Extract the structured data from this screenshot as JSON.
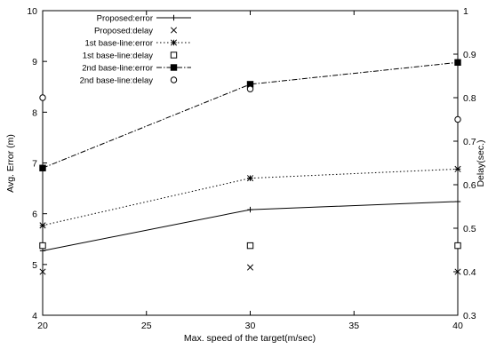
{
  "chart_data": {
    "type": "line",
    "title": "",
    "xlabel": "Max. speed of the target(m/sec)",
    "ylabel_left": "Avg. Error (m)",
    "ylabel_right": "Delay(sec.)",
    "x": [
      20,
      30,
      40
    ],
    "xlim": [
      20,
      40
    ],
    "ylim_left": [
      4,
      10
    ],
    "ylim_right": [
      0.3,
      1.0
    ],
    "x_ticks": [
      "20",
      "25",
      "30",
      "35",
      "40"
    ],
    "y_left_ticks": [
      "4",
      "5",
      "6",
      "7",
      "8",
      "9",
      "10"
    ],
    "y_right_ticks": [
      "0.3",
      "0.4",
      "0.5",
      "0.6",
      "0.7",
      "0.8",
      "0.9",
      "1"
    ],
    "grid": false,
    "legend_position": "top-left",
    "series": [
      {
        "name": "Proposed:error",
        "axis": "left",
        "style": "line",
        "marker": "plus",
        "dash": "solid",
        "values": [
          5.27,
          6.08,
          6.24
        ]
      },
      {
        "name": "Proposed:delay",
        "axis": "right",
        "style": "points",
        "marker": "cross",
        "values": [
          0.4,
          0.41,
          0.4
        ]
      },
      {
        "name": "1st base-line:error",
        "axis": "left",
        "style": "line",
        "marker": "star",
        "dash": "dotted",
        "values": [
          5.77,
          6.7,
          6.88
        ]
      },
      {
        "name": "1st base-line:delay",
        "axis": "right",
        "style": "points",
        "marker": "open-square",
        "values": [
          0.46,
          0.46,
          0.46
        ]
      },
      {
        "name": "2nd base-line:error",
        "axis": "left",
        "style": "line",
        "marker": "filled-square",
        "dash": "dashdot",
        "values": [
          6.9,
          8.55,
          8.98
        ]
      },
      {
        "name": "2nd base-line:delay",
        "axis": "right",
        "style": "points",
        "marker": "open-circle",
        "values": [
          0.8,
          0.82,
          0.75
        ]
      }
    ]
  }
}
